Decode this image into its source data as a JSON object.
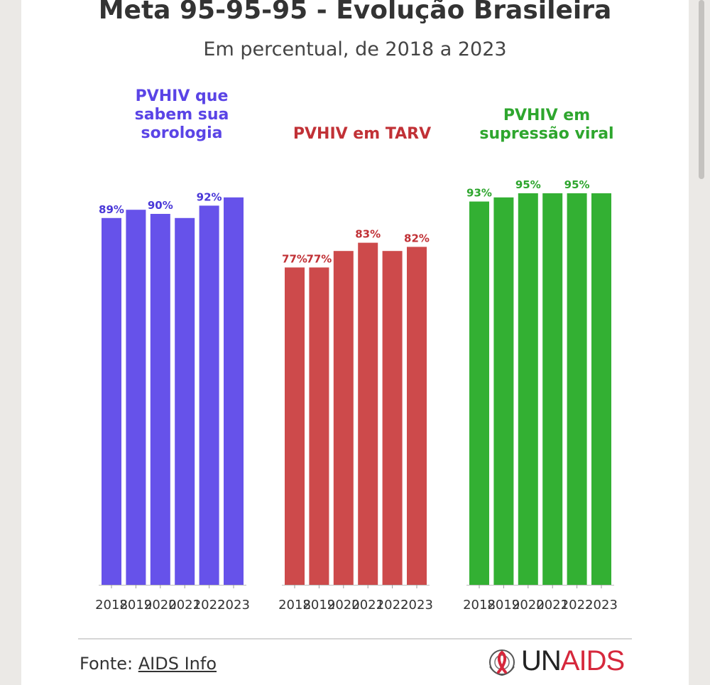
{
  "title": "Meta 95-95-95 - Evolução Brasileira",
  "subtitle": "Em percentual, de 2018 a 2023",
  "chart_data": [
    {
      "type": "bar",
      "title_lines": [
        "PVHIV que",
        "sabem sua",
        "sorologia"
      ],
      "color": "#6652ea",
      "categories": [
        "2018",
        "2019",
        "2020",
        "2021",
        "2022",
        "2023"
      ],
      "values": [
        89,
        91,
        90,
        89,
        92,
        94
      ],
      "data_labels": [
        "89%",
        "",
        "90%",
        "",
        "92%",
        ""
      ],
      "ylim": [
        0,
        100
      ],
      "grid": false
    },
    {
      "type": "bar",
      "title_lines": [
        "PVHIV em TARV"
      ],
      "color": "#cd4a4b",
      "categories": [
        "2018",
        "2019",
        "2020",
        "2021",
        "2022",
        "2023"
      ],
      "values": [
        77,
        77,
        81,
        83,
        81,
        82
      ],
      "data_labels": [
        "77%",
        "77%",
        "",
        "83%",
        "",
        "82%"
      ],
      "ylim": [
        0,
        100
      ],
      "grid": false
    },
    {
      "type": "bar",
      "title_lines": [
        "PVHIV em",
        "supressão viral"
      ],
      "color": "#33b033",
      "categories": [
        "2018",
        "2019",
        "2020",
        "2021",
        "2022",
        "2023"
      ],
      "values": [
        93,
        94,
        95,
        95,
        95,
        95
      ],
      "data_labels": [
        "93%",
        "",
        "95%",
        "",
        "95%",
        ""
      ],
      "ylim": [
        0,
        100
      ],
      "grid": false
    }
  ],
  "footer": {
    "source_prefix": "Fonte: ",
    "source_link": "AIDS Info",
    "logo_un": "UN",
    "logo_aids": "AIDS"
  }
}
